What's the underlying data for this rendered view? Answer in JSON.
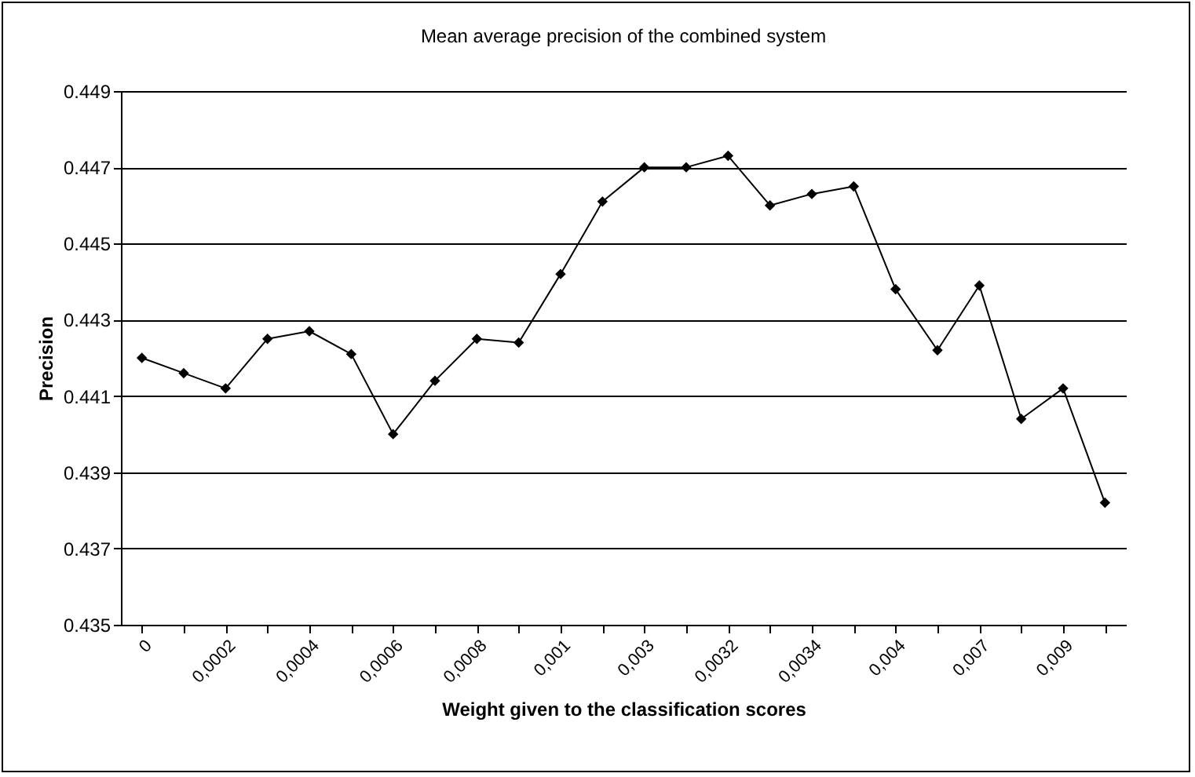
{
  "chart_data": {
    "type": "line",
    "title": "Mean average precision of the combined system",
    "xlabel": "Weight given to the classification scores",
    "ylabel": "Precision",
    "categories": [
      "0",
      null,
      "0,0002",
      null,
      "0,0004",
      null,
      "0,0006",
      null,
      "0,0008",
      null,
      "0,001",
      null,
      "0,003",
      null,
      "0,0032",
      null,
      "0,0034",
      null,
      "0,004",
      null,
      "0,007",
      null,
      "0,009",
      null
    ],
    "series": [
      {
        "color": "#000000",
        "values": [
          0.442,
          0.4416,
          0.4412,
          0.4425,
          0.4427,
          0.4421,
          0.44,
          0.4414,
          0.4425,
          0.4424,
          0.4442,
          0.4461,
          0.447,
          0.447,
          0.4473,
          0.446,
          0.4463,
          0.4465,
          0.4438,
          0.4422,
          0.4439,
          0.4404,
          0.4412,
          0.4382
        ]
      }
    ],
    "ylim": [
      0.435,
      0.449
    ],
    "yticks": [
      0.435,
      0.437,
      0.439,
      0.441,
      0.443,
      0.445,
      0.447,
      0.449
    ],
    "grid": "y",
    "marker": "diamond",
    "line_style": "solid"
  }
}
